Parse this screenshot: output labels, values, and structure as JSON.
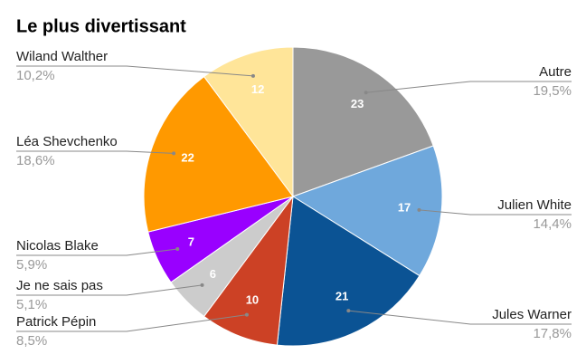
{
  "chart_data": {
    "type": "pie",
    "title": "Le plus divertissant",
    "categories": [
      "Autre",
      "Julien White",
      "Jules Warner",
      "Patrick Pépin",
      "Je ne sais pas",
      "Nicolas Blake",
      "Léa Shevchenko",
      "Wiland Walther"
    ],
    "values": [
      23,
      17,
      21,
      10,
      6,
      7,
      22,
      12
    ],
    "percent_labels": [
      "19,5%",
      "14,4%",
      "17,8%",
      "8,5%",
      "5,1%",
      "5,9%",
      "18,6%",
      "10,2%"
    ],
    "colors": [
      "#999999",
      "#6fa8dc",
      "#0b5394",
      "#cc4125",
      "#cccccc",
      "#9900ff",
      "#ff9900",
      "#ffe599"
    ]
  }
}
